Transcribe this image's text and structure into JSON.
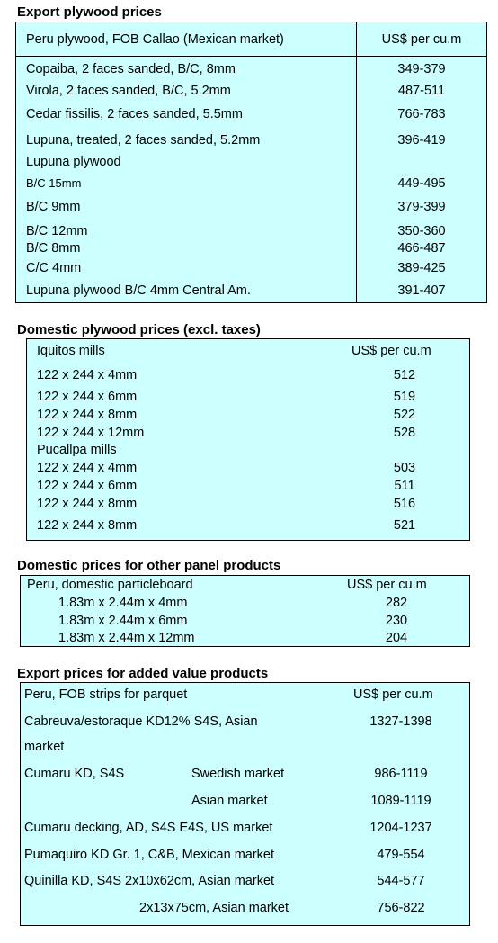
{
  "export_plywood": {
    "title": "Export plywood prices",
    "header": {
      "product": "Peru plywood, FOB Callao (Mexican market)",
      "unit": "US$ per cu.m"
    },
    "rows": [
      {
        "product": "Copaiba, 2 faces sanded, B/C, 8mm",
        "price": "349-379"
      },
      {
        "product": "Virola, 2 faces sanded, B/C, 5.2mm",
        "price": "487-511"
      },
      {
        "product": "Cedar fissilis, 2 faces sanded, 5.5mm",
        "price": "766-783"
      },
      {
        "product": "Lupuna, treated, 2 faces sanded, 5.2mm",
        "price": "396-419"
      },
      {
        "product": "Lupuna plywood",
        "price": ""
      },
      {
        "product": "B/C 15mm",
        "price": "449-495"
      },
      {
        "product": "B/C 9mm",
        "price": "379-399"
      },
      {
        "product": "B/C 12mm",
        "price": "350-360"
      },
      {
        "product": "B/C 8mm",
        "price": "466-487"
      },
      {
        "product": "C/C 4mm",
        "price": "389-425"
      },
      {
        "product": "Lupuna plywood B/C 4mm Central Am.",
        "price": "391-407"
      }
    ]
  },
  "domestic_plywood": {
    "title": "Domestic plywood prices (excl. taxes)",
    "header": {
      "product": "Iquitos mills",
      "unit": "US$ per cu.m"
    },
    "rows": [
      {
        "product": "122 x 244 x 4mm",
        "price": "512"
      },
      {
        "product": "122 x 244 x 6mm",
        "price": "519"
      },
      {
        "product": "122 x 244 x 8mm",
        "price": "522"
      },
      {
        "product": "122 x 244 x 12mm",
        "price": "528"
      },
      {
        "product": "Pucallpa mills",
        "price": ""
      },
      {
        "product": "122 x 244 x 4mm",
        "price": "503"
      },
      {
        "product": "122 x 244 x 6mm",
        "price": "511"
      },
      {
        "product": "122 x 244 x 8mm",
        "price": "516"
      },
      {
        "product": "122 x 244 x 8mm",
        "price": "521"
      }
    ]
  },
  "other_panels": {
    "title": "Domestic prices for other panel products",
    "header": {
      "product": "Peru, domestic particleboard",
      "unit": "US$ per cu.m"
    },
    "rows": [
      {
        "product": "1.83m x 2.44m x 4mm",
        "price": "282"
      },
      {
        "product": "1.83m x 2.44m x 6mm",
        "price": "230"
      },
      {
        "product": "1.83m x 2.44m x 12mm",
        "price": "204"
      }
    ]
  },
  "added_value": {
    "title": "Export prices for added value products",
    "header": {
      "product": "Peru, FOB strips for parquet",
      "unit": "US$ per cu.m"
    },
    "rows": [
      {
        "product": "Cabreuva/estoraque KD12% S4S, Asian",
        "market": "",
        "price": "1327-1398"
      },
      {
        "product": "market",
        "market": "",
        "price": ""
      },
      {
        "product": "Cumaru KD, S4S",
        "market": "Swedish market",
        "price": "986-1119"
      },
      {
        "product": "",
        "market": "Asian market",
        "price": "1089-1119"
      },
      {
        "product": "Cumaru decking, AD, S4S E4S,  US market",
        "market": "",
        "price": "1204-1237"
      },
      {
        "product": "Pumaquiro KD Gr. 1, C&B,  Mexican market",
        "market": "",
        "price": "479-554"
      },
      {
        "product": "Quinilla KD, S4S 2x10x62cm,  Asian market",
        "market": "",
        "price": "544-577"
      },
      {
        "product": "",
        "market": "2x13x75cm, Asian market",
        "price": "756-822"
      }
    ]
  }
}
